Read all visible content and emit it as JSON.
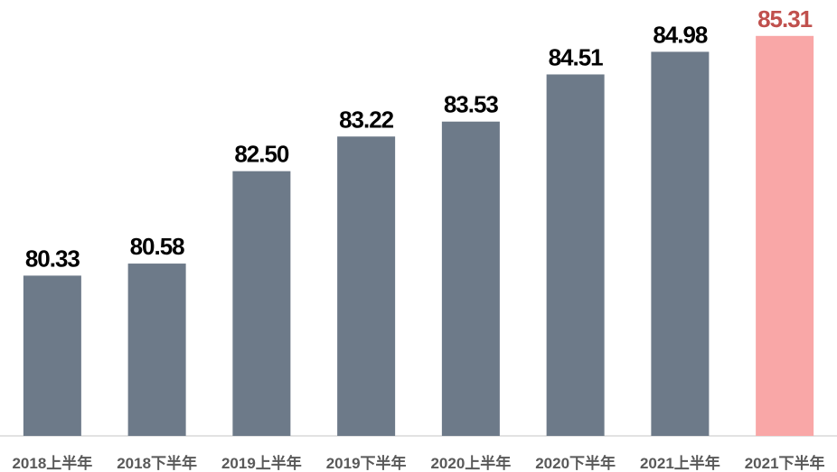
{
  "chart_data": {
    "type": "bar",
    "categories": [
      "2018上半年",
      "2018下半年",
      "2019上半年",
      "2019下半年",
      "2020上半年",
      "2020下半年",
      "2021上半年",
      "2021下半年"
    ],
    "values": [
      80.33,
      80.58,
      82.5,
      83.22,
      83.53,
      84.51,
      84.98,
      85.31
    ],
    "value_labels": [
      "80.33",
      "80.58",
      "82.50",
      "83.22",
      "83.53",
      "84.51",
      "84.98",
      "85.31"
    ],
    "colors": [
      "#6d7a89",
      "#6d7a89",
      "#6d7a89",
      "#6d7a89",
      "#6d7a89",
      "#6d7a89",
      "#6d7a89",
      "#f9a7a7"
    ],
    "label_colors": [
      "#000000",
      "#000000",
      "#000000",
      "#000000",
      "#000000",
      "#000000",
      "#000000",
      "#c0504d"
    ],
    "ylim": [
      77,
      86
    ]
  }
}
